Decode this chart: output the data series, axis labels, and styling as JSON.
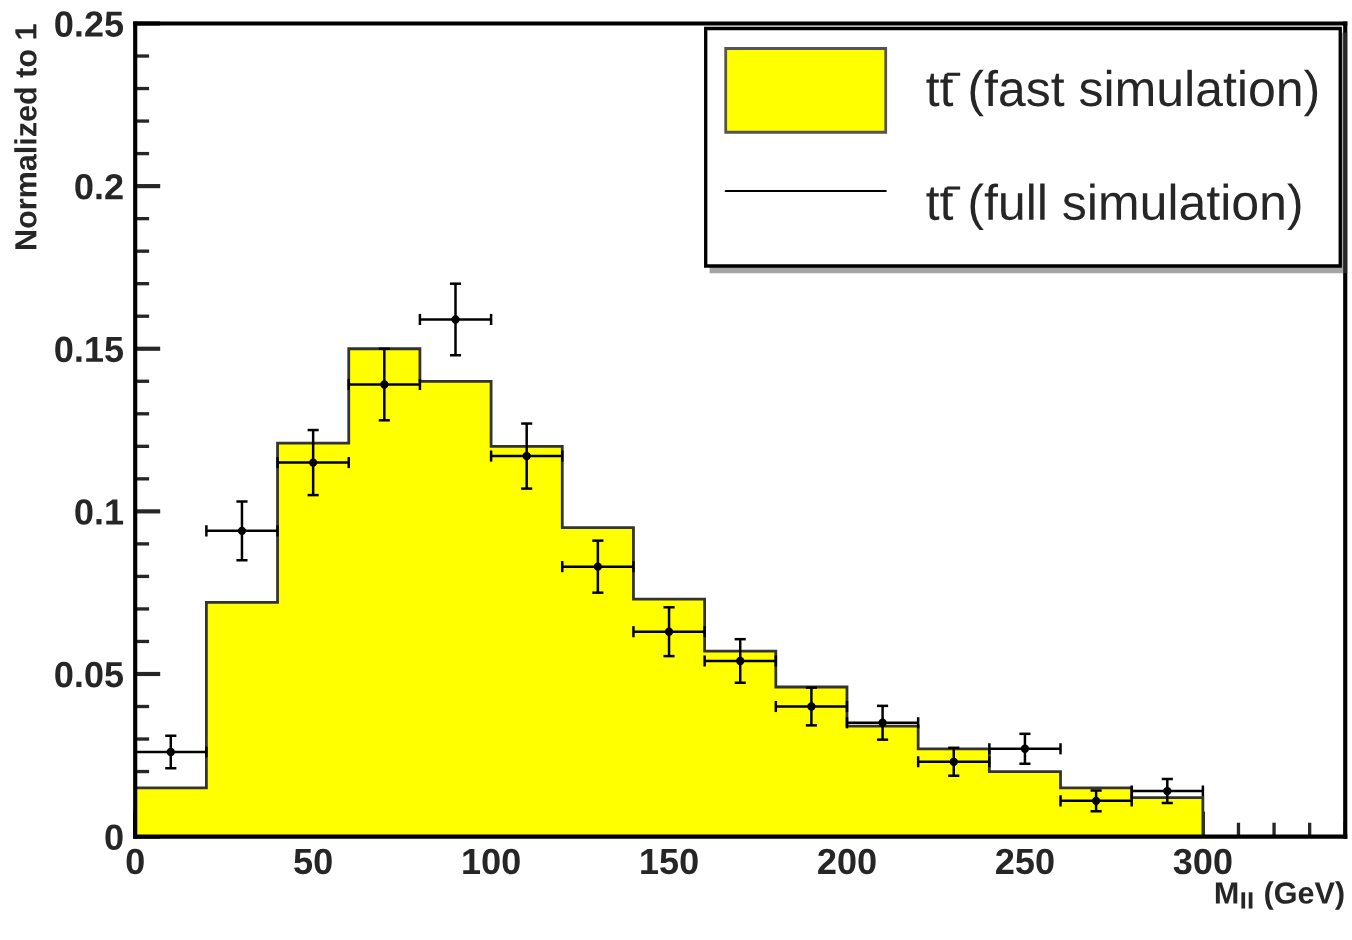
{
  "chart_data": {
    "type": "histogram",
    "xlabel": "M$_{ll}$ (GeV)",
    "ylabel": "Normalized to 1",
    "bins": [
      0,
      20,
      40,
      60,
      80,
      100,
      120,
      140,
      160,
      180,
      200,
      220,
      240,
      260,
      280,
      300
    ],
    "series": [
      {
        "name": "tt̄ (fast simulation)",
        "color": "#ffff00",
        "values": [
          0.015,
          0.072,
          0.121,
          0.15,
          0.14,
          0.12,
          0.095,
          0.073,
          0.057,
          0.046,
          0.034,
          0.027,
          0.02,
          0.015,
          0.012
        ]
      },
      {
        "name": "tt̄ (full simulation)",
        "type": "scatter",
        "color": "#000000",
        "marker": "none",
        "x": [
          10,
          30,
          50,
          70,
          90,
          110,
          130,
          150,
          170,
          190,
          210,
          230,
          250,
          270,
          290
        ],
        "values": [
          0.026,
          0.094,
          0.115,
          0.139,
          0.159,
          0.117,
          0.083,
          0.063,
          0.054,
          0.04,
          0.035,
          0.023,
          0.027,
          0.011,
          0.014
        ],
        "errors": [
          0.005,
          0.009,
          0.01,
          0.011,
          0.011,
          0.01,
          0.008,
          0.0075,
          0.0067,
          0.0058,
          0.0052,
          0.0043,
          0.0046,
          0.0032,
          0.0037
        ],
        "xerrors": [
          10,
          10,
          10,
          10,
          10,
          10,
          10,
          10,
          10,
          10,
          10,
          10,
          10,
          10,
          10
        ]
      }
    ],
    "xlim": [
      0,
      340
    ],
    "ylim": [
      0,
      0.25
    ],
    "xticks": [
      0,
      50,
      100,
      150,
      200,
      250,
      300
    ],
    "yticks": [
      0,
      0.05,
      {
        "value": 0.1,
        "label": "0.1"
      },
      0.15,
      {
        "value": 0.2,
        "label": "0.2"
      },
      0.25
    ],
    "legend": "top right",
    "grid": false
  }
}
